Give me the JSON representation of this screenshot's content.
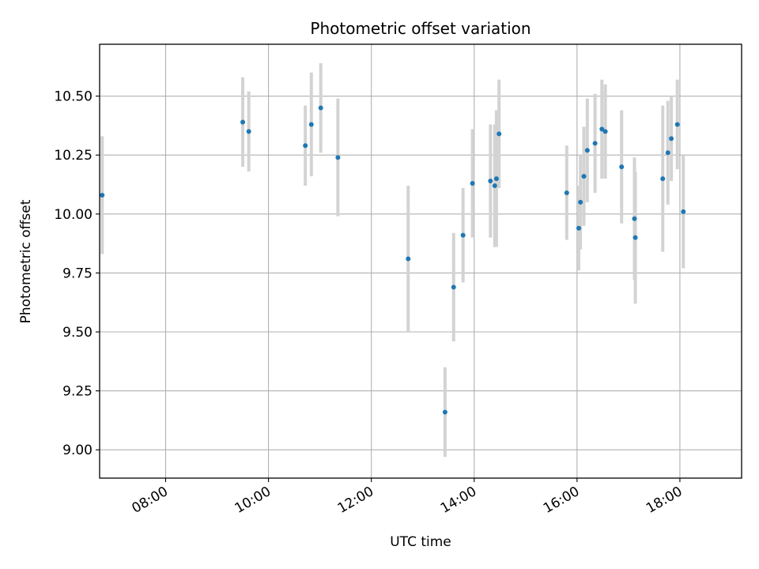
{
  "chart_data": {
    "type": "scatter",
    "title": "Photometric offset variation",
    "xlabel": "UTC time",
    "ylabel": "Photometric offset",
    "x_unit": "UTC time of day (HH:MM)",
    "xlim": [
      "06:43",
      "19:12"
    ],
    "ylim": [
      8.88,
      10.72
    ],
    "x_ticks": [
      "08:00",
      "10:00",
      "12:00",
      "14:00",
      "16:00",
      "18:00"
    ],
    "y_ticks": [
      "9.00",
      "9.25",
      "9.50",
      "9.75",
      "10.00",
      "10.25",
      "10.50"
    ],
    "grid": true,
    "legend": "none",
    "colors": {
      "points": "#1f77b4",
      "error_bars": "#d3d3d3",
      "grid": "#b0b0b0"
    },
    "points": [
      {
        "x": "06:46",
        "y": 10.08,
        "err": 0.25
      },
      {
        "x": "09:30",
        "y": 10.39,
        "err": 0.19
      },
      {
        "x": "09:37",
        "y": 10.35,
        "err": 0.17
      },
      {
        "x": "10:43",
        "y": 10.29,
        "err": 0.17
      },
      {
        "x": "10:50",
        "y": 10.38,
        "err": 0.22
      },
      {
        "x": "11:01",
        "y": 10.45,
        "err": 0.19
      },
      {
        "x": "11:21",
        "y": 10.24,
        "err": 0.25
      },
      {
        "x": "12:43",
        "y": 9.81,
        "err": 0.31
      },
      {
        "x": "13:26",
        "y": 9.16,
        "err": 0.19
      },
      {
        "x": "13:36",
        "y": 9.69,
        "err": 0.23
      },
      {
        "x": "13:47",
        "y": 9.91,
        "err": 0.2
      },
      {
        "x": "13:58",
        "y": 10.13,
        "err": 0.23
      },
      {
        "x": "14:19",
        "y": 10.14,
        "err": 0.24
      },
      {
        "x": "14:24",
        "y": 10.12,
        "err": 0.26
      },
      {
        "x": "14:26",
        "y": 10.15,
        "err": 0.29
      },
      {
        "x": "14:29",
        "y": 10.34,
        "err": 0.23
      },
      {
        "x": "15:48",
        "y": 10.09,
        "err": 0.2
      },
      {
        "x": "16:02",
        "y": 9.94,
        "err": 0.18
      },
      {
        "x": "16:04",
        "y": 10.05,
        "err": 0.2
      },
      {
        "x": "16:08",
        "y": 10.16,
        "err": 0.21
      },
      {
        "x": "16:12",
        "y": 10.27,
        "err": 0.22
      },
      {
        "x": "16:21",
        "y": 10.3,
        "err": 0.21
      },
      {
        "x": "16:29",
        "y": 10.36,
        "err": 0.21
      },
      {
        "x": "16:33",
        "y": 10.35,
        "err": 0.2
      },
      {
        "x": "16:52",
        "y": 10.2,
        "err": 0.24
      },
      {
        "x": "17:07",
        "y": 9.98,
        "err": 0.26
      },
      {
        "x": "17:08",
        "y": 9.9,
        "err": 0.28
      },
      {
        "x": "17:40",
        "y": 10.15,
        "err": 0.31
      },
      {
        "x": "17:46",
        "y": 10.26,
        "err": 0.22
      },
      {
        "x": "17:50",
        "y": 10.32,
        "err": 0.18
      },
      {
        "x": "17:57",
        "y": 10.38,
        "err": 0.19
      },
      {
        "x": "18:04",
        "y": 10.01,
        "err": 0.24
      }
    ]
  }
}
